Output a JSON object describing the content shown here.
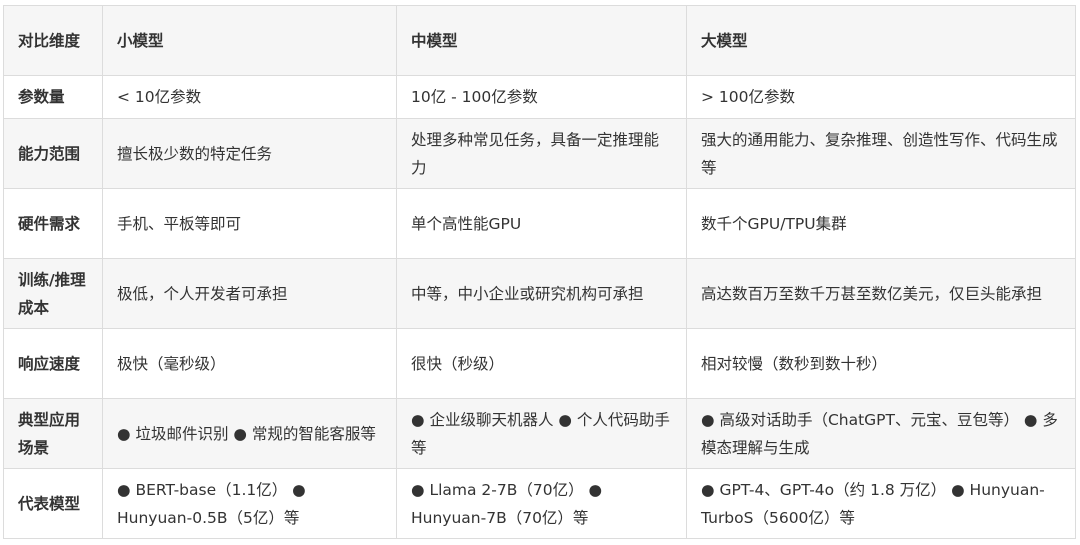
{
  "header": [
    "对比维度",
    "小模型",
    "中模型",
    "大模型"
  ],
  "rows": [
    {
      "dim": "参数量",
      "small": "< 10亿参数",
      "medium": "10亿 - 100亿参数",
      "large": "> 100亿参数"
    },
    {
      "dim": "能力范围",
      "small": "擅长极少数的特定任务",
      "medium": "处理多种常见任务，具备一定推理能力",
      "large": "强大的通用能力、复杂推理、创造性写作、代码生成等"
    },
    {
      "dim": "硬件需求",
      "small": "手机、平板等即可",
      "medium": "单个高性能GPU",
      "large": "数千个GPU/TPU集群"
    },
    {
      "dim": "训练/推理成本",
      "small": "极低，个人开发者可承担",
      "medium": "中等，中小企业或研究机构可承担",
      "large": "高达数百万至数千万甚至数亿美元，仅巨头能承担"
    },
    {
      "dim": "响应速度",
      "small": "极快（毫秒级）",
      "medium": "很快（秒级）",
      "large": "相对较慢（数秒到数十秒）"
    },
    {
      "dim": "典型应用场景",
      "small": "● 垃圾邮件识别 ● 常规的智能客服等",
      "medium": "● 企业级聊天机器人 ● 个人代码助手等",
      "large": "● 高级对话助手（ChatGPT、元宝、豆包等） ● 多模态理解与生成"
    },
    {
      "dim": "代表模型",
      "small": "● BERT-base（1.1亿） ● Hunyuan-0.5B（5亿）等",
      "medium": "● Llama 2-7B（70亿） ● Hunyuan-7B（70亿）等",
      "large": "● GPT-4、GPT-4o（约 1.8 万亿） ● Hunyuan-TurboS（5600亿）等"
    }
  ]
}
